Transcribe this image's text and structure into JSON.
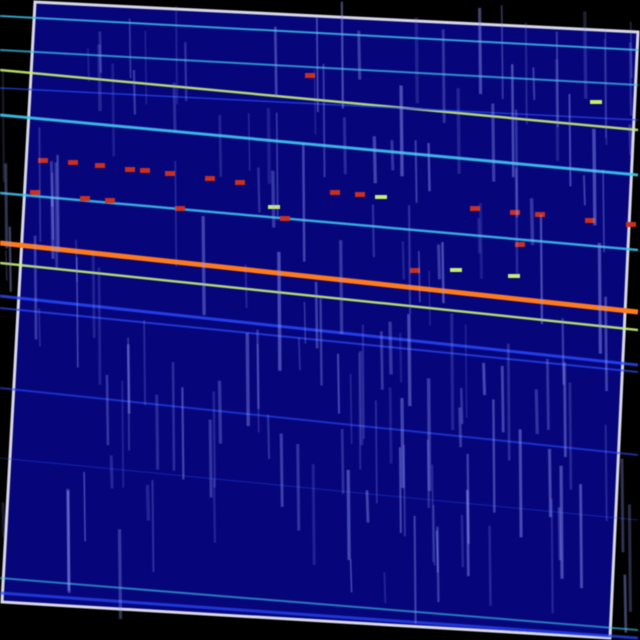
{
  "image": {
    "kind": "rotated spectrogram-like heatmap with streak noise",
    "colors": {
      "background": "#000000",
      "field": "#06067a",
      "border": "#d8d8e8",
      "cyan_band": "#3fc8f0",
      "blue_band": "#2a4cff",
      "orange_band": "#ff7a1a",
      "yellowgreen_band": "#c8f070",
      "red_spots": "#c83020",
      "streak": "#9aa0ff"
    }
  }
}
